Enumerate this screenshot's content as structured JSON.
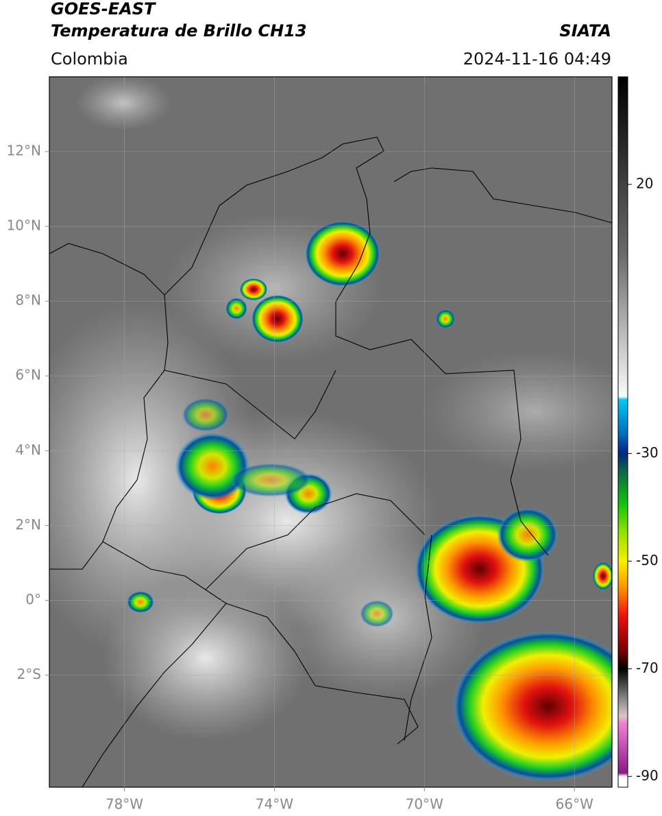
{
  "header": {
    "satellite": "GOES-EAST",
    "product": "Temperatura de Brillo CH13",
    "region": "Colombia",
    "source": "SIATA",
    "datetime": "2024-11-16 04:49"
  },
  "map": {
    "xlim": [
      -80,
      -65
    ],
    "ylim": [
      -5,
      14
    ],
    "xticks": [
      {
        "value": -78,
        "label": "78°W"
      },
      {
        "value": -74,
        "label": "74°W"
      },
      {
        "value": -70,
        "label": "70°W"
      },
      {
        "value": -66,
        "label": "66°W"
      }
    ],
    "yticks": [
      {
        "value": 12,
        "label": "12°N"
      },
      {
        "value": 10,
        "label": "10°N"
      },
      {
        "value": 8,
        "label": "8°N"
      },
      {
        "value": 6,
        "label": "6°N"
      },
      {
        "value": 4,
        "label": "4°N"
      },
      {
        "value": 2,
        "label": "2°N"
      },
      {
        "value": 0,
        "label": "0°"
      },
      {
        "value": -2,
        "label": "2°S"
      }
    ],
    "grid": true
  },
  "colorbar": {
    "lim": [
      -92,
      40
    ],
    "ticks": [
      20,
      -30,
      -50,
      -70,
      -90
    ]
  }
}
